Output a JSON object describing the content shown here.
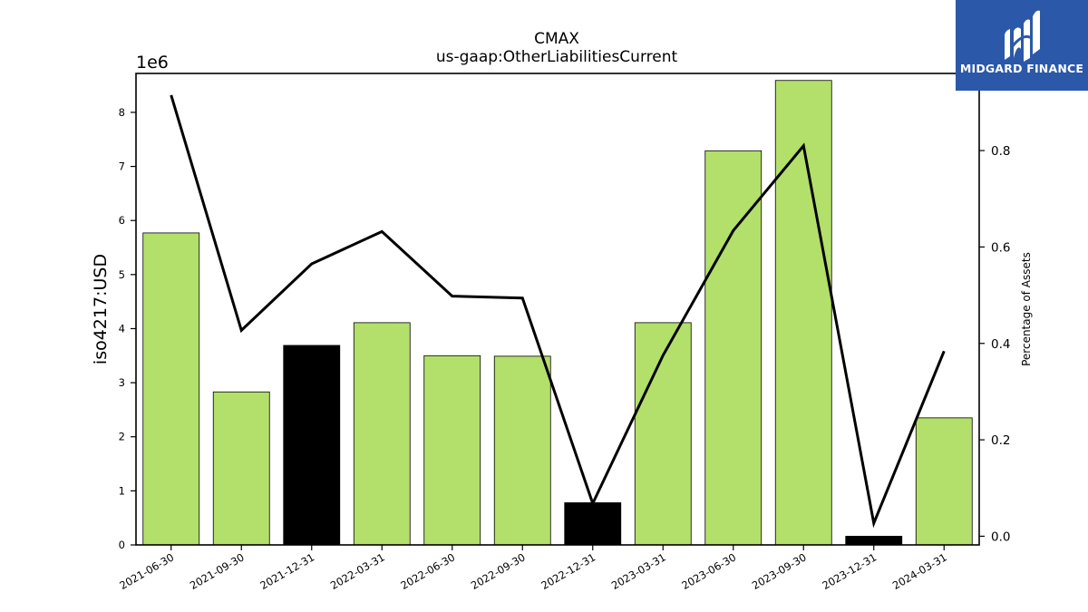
{
  "brand": {
    "name": "MIDGARD FINANCE",
    "icon": "midgard-logo-icon",
    "background_color": "#2b58a8"
  },
  "chart_data": {
    "type": "bar",
    "title": "CMAX",
    "subtitle": "us-gaap:OtherLiabilitiesCurrent",
    "ylabel": "iso4217:USD",
    "y_multiplier_label": "1e6",
    "y2label": "Percentage of Assets",
    "categories": [
      "2021-06-30",
      "2021-09-30",
      "2021-12-31",
      "2022-03-31",
      "2022-06-30",
      "2022-09-30",
      "2022-12-31",
      "2023-03-31",
      "2023-06-30",
      "2023-09-30",
      "2023-12-31",
      "2024-03-31"
    ],
    "bar_values": [
      5770000,
      2830000,
      3690000,
      4110000,
      3500000,
      3490000,
      780000,
      4110000,
      7290000,
      8590000,
      160000,
      2350000
    ],
    "bar_colors": [
      "#b3df6b",
      "#b3df6b",
      "#000000",
      "#b3df6b",
      "#b3df6b",
      "#b3df6b",
      "#000000",
      "#b3df6b",
      "#b3df6b",
      "#b3df6b",
      "#000000",
      "#b3df6b"
    ],
    "line_values": [
      0.915,
      0.427,
      0.565,
      0.632,
      0.498,
      0.494,
      0.068,
      0.375,
      0.634,
      0.81,
      0.027,
      0.384
    ],
    "line_color": "#000000",
    "ylim": [
      0,
      8.72
    ],
    "y2lim": [
      -0.018,
      0.96
    ],
    "yticks": [
      "0",
      "1",
      "2",
      "3",
      "4",
      "5",
      "6",
      "7",
      "8"
    ],
    "y2ticks": [
      "0.0",
      "0.2",
      "0.4",
      "0.6",
      "0.8"
    ],
    "grid": false
  }
}
